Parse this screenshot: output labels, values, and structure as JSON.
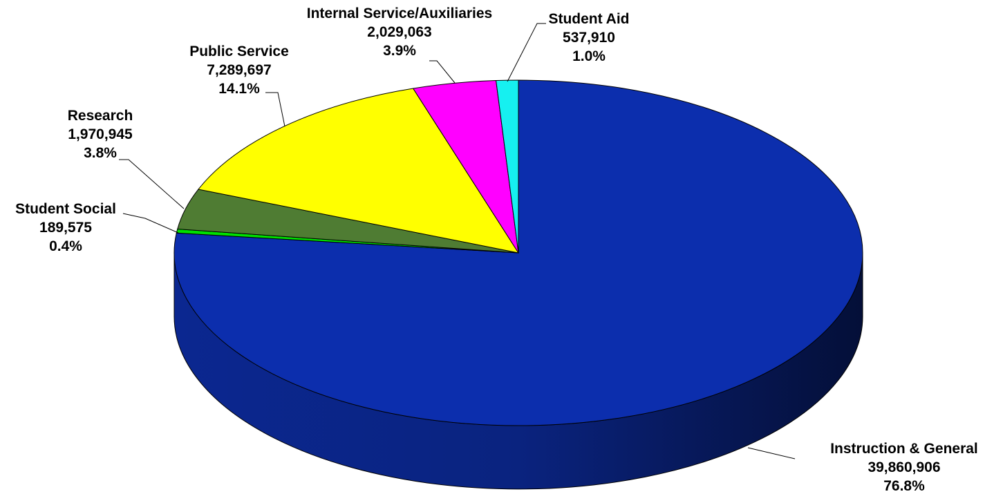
{
  "chart_data": {
    "type": "pie",
    "style": "3d",
    "slices": [
      {
        "name": "Instruction & General",
        "value": 39860906,
        "value_label": "39,860,906",
        "percent_label": "76.8%",
        "color": "#0c2ead",
        "side_color": "#0a2380"
      },
      {
        "name": "Student Social",
        "value": 189575,
        "value_label": "189,575",
        "percent_label": "0.4%",
        "color": "#00e000",
        "side_color": "#00a000"
      },
      {
        "name": "Research",
        "value": 1970945,
        "value_label": "1,970,945",
        "percent_label": "3.8%",
        "color": "#4f7c33",
        "side_color": "#3a5c25"
      },
      {
        "name": "Public  Service",
        "value": 7289697,
        "value_label": "7,289,697",
        "percent_label": "14.1%",
        "color": "#ffff00",
        "side_color": "#c8c800"
      },
      {
        "name": "Internal  Service/Auxiliaries",
        "value": 2029063,
        "value_label": "2,029,063",
        "percent_label": "3.9%",
        "color": "#ff00ff",
        "side_color": "#c000c0"
      },
      {
        "name": "Student Aid",
        "value": 537910,
        "value_label": "537,910",
        "percent_label": "1.0%",
        "color": "#16f0f0",
        "side_color": "#10b0b0"
      }
    ]
  }
}
